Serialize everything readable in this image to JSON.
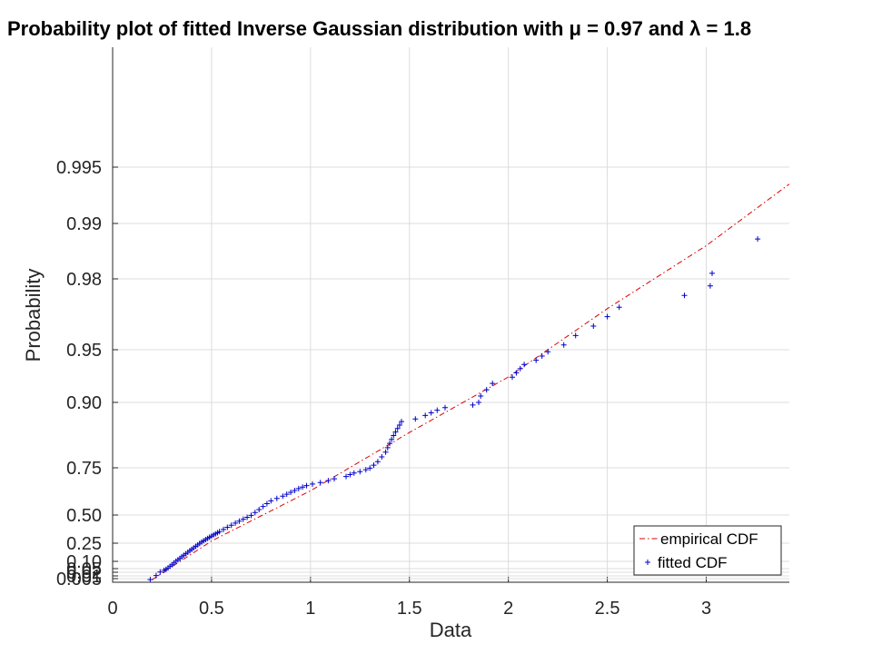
{
  "chart_data": {
    "type": "scatter",
    "title": "Probability plot of fitted Inverse Gaussian distribution with μ = 0.97 and λ = 1.8",
    "xlabel": "Data",
    "ylabel": "Probability",
    "xlim": [
      0,
      3.42
    ],
    "ylim": [
      0.0012,
      0.9984
    ],
    "y_scale": "inverse-gaussian-cdf",
    "grid": true,
    "legend_position": "bottom-right",
    "x_ticks": [
      0,
      0.5,
      1,
      1.5,
      2,
      2.5,
      3
    ],
    "x_tick_labels": [
      "0",
      "0.5",
      "1",
      "1.5",
      "2",
      "2.5",
      "3"
    ],
    "y_ticks": [
      0.005,
      0.01,
      0.02,
      0.05,
      0.1,
      0.25,
      0.5,
      0.75,
      0.9,
      0.95,
      0.98,
      0.99,
      0.995
    ],
    "y_tick_labels": [
      "0.005",
      "0.01",
      "0.02",
      "0.05",
      "0.10",
      "0.25",
      "0.50",
      "0.75",
      "0.90",
      "0.95",
      "0.98",
      "0.99",
      "0.995"
    ],
    "series": [
      {
        "name": "empirical CDF",
        "kind": "line",
        "color": "#dd0000",
        "style": "dash-dot",
        "x": [
          0.2,
          0.5,
          1.0,
          1.5,
          2.0,
          2.5,
          3.0,
          3.42
        ],
        "y": [
          0.004,
          0.2695,
          0.6283,
          0.8311,
          0.9241,
          0.9674,
          0.986,
          0.9935
        ]
      },
      {
        "name": "fitted CDF",
        "kind": "points",
        "color": "#0000cc",
        "marker": "+",
        "x": [
          0.19,
          0.22,
          0.24,
          0.26,
          0.27,
          0.28,
          0.29,
          0.3,
          0.31,
          0.32,
          0.33,
          0.34,
          0.35,
          0.36,
          0.37,
          0.38,
          0.39,
          0.4,
          0.41,
          0.42,
          0.43,
          0.44,
          0.45,
          0.46,
          0.47,
          0.48,
          0.49,
          0.5,
          0.51,
          0.52,
          0.53,
          0.54,
          0.56,
          0.58,
          0.6,
          0.62,
          0.64,
          0.66,
          0.68,
          0.7,
          0.72,
          0.74,
          0.76,
          0.78,
          0.8,
          0.83,
          0.86,
          0.88,
          0.9,
          0.92,
          0.94,
          0.96,
          0.98,
          1.01,
          1.05,
          1.09,
          1.12,
          1.18,
          1.2,
          1.22,
          1.25,
          1.28,
          1.3,
          1.32,
          1.34,
          1.36,
          1.38,
          1.39,
          1.4,
          1.41,
          1.42,
          1.43,
          1.44,
          1.45,
          1.46,
          1.53,
          1.58,
          1.61,
          1.64,
          1.68,
          1.82,
          1.85,
          1.86,
          1.89,
          1.92,
          2.02,
          2.04,
          2.06,
          2.08,
          2.14,
          2.17,
          2.2,
          2.28,
          2.34,
          2.43,
          2.5,
          2.56,
          2.89,
          3.02,
          3.03,
          3.26
        ],
        "y": [
          0.004,
          0.011,
          0.022,
          0.036,
          0.045,
          0.055,
          0.066,
          0.077,
          0.089,
          0.101,
          0.113,
          0.125,
          0.138,
          0.15,
          0.163,
          0.175,
          0.188,
          0.2,
          0.212,
          0.224,
          0.236,
          0.248,
          0.26,
          0.271,
          0.282,
          0.293,
          0.303,
          0.313,
          0.323,
          0.333,
          0.343,
          0.353,
          0.372,
          0.391,
          0.41,
          0.428,
          0.446,
          0.463,
          0.48,
          0.497,
          0.513,
          0.529,
          0.545,
          0.56,
          0.575,
          0.588,
          0.6,
          0.61,
          0.62,
          0.63,
          0.64,
          0.648,
          0.656,
          0.664,
          0.672,
          0.682,
          0.692,
          0.704,
          0.714,
          0.722,
          0.73,
          0.74,
          0.748,
          0.756,
          0.764,
          0.775,
          0.786,
          0.796,
          0.806,
          0.815,
          0.824,
          0.832,
          0.84,
          0.848,
          0.856,
          0.862,
          0.87,
          0.876,
          0.882,
          0.888,
          0.894,
          0.9,
          0.906,
          0.912,
          0.918,
          0.924,
          0.928,
          0.932,
          0.936,
          0.94,
          0.944,
          0.948,
          0.952,
          0.956,
          0.96,
          0.964,
          0.968,
          0.973,
          0.977,
          0.981,
          0.9872
        ]
      }
    ]
  }
}
